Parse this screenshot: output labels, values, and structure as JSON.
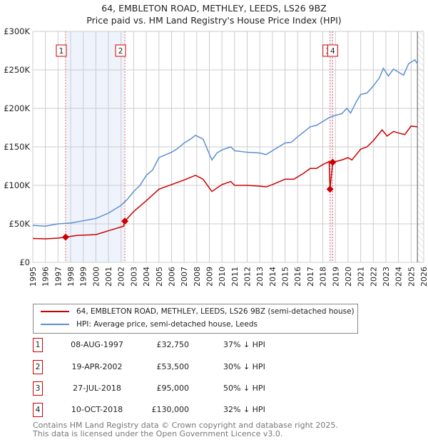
{
  "chart_data": {
    "type": "line",
    "title": "64, EMBLETON ROAD, METHLEY, LEEDS, LS26 9BZ",
    "subtitle": "Price paid vs. HM Land Registry's House Price Index (HPI)",
    "xlim": [
      1995,
      2026
    ],
    "ylim": [
      0,
      300000
    ],
    "y_ticks": [
      {
        "v": 0,
        "label": "£0"
      },
      {
        "v": 50000,
        "label": "£50K"
      },
      {
        "v": 100000,
        "label": "£100K"
      },
      {
        "v": 150000,
        "label": "£150K"
      },
      {
        "v": 200000,
        "label": "£200K"
      },
      {
        "v": 250000,
        "label": "£250K"
      },
      {
        "v": 300000,
        "label": "£300K"
      }
    ],
    "x_ticks": [
      "1995",
      "1996",
      "1997",
      "1998",
      "1999",
      "2000",
      "2001",
      "2002",
      "2003",
      "2004",
      "2005",
      "2006",
      "2007",
      "2008",
      "2009",
      "2010",
      "2011",
      "2012",
      "2013",
      "2014",
      "2015",
      "2016",
      "2017",
      "2018",
      "2019",
      "2020",
      "2021",
      "2022",
      "2023",
      "2024",
      "2025",
      "2026"
    ],
    "grid": true,
    "series": [
      {
        "name": "64, EMBLETON ROAD, METHLEY, LEEDS, LS26 9BZ (semi-detached house)",
        "color": "#cc0000",
        "x": [
          1995,
          1996,
          1997,
          1997.6,
          1998.5,
          2000,
          2001,
          2002.2,
          2002.3,
          2003,
          2004,
          2005,
          2006,
          2007,
          2007.9,
          2008.5,
          2009.2,
          2010,
          2010.7,
          2011,
          2012,
          2013,
          2013.5,
          2014,
          2015,
          2015.7,
          2016.5,
          2017,
          2017.5,
          2018,
          2018.5,
          2018.57,
          2018.78,
          2019.5,
          2020,
          2020.3,
          2021,
          2021.5,
          2022,
          2022.7,
          2023.1,
          2023.6,
          2024,
          2024.5,
          2025,
          2025.5
        ],
        "y": [
          31000,
          30500,
          31500,
          32750,
          35000,
          36000,
          41000,
          47000,
          53500,
          66000,
          80000,
          95000,
          101000,
          107000,
          113000,
          108000,
          92000,
          101000,
          105000,
          100000,
          100000,
          99000,
          98000,
          101000,
          108000,
          108000,
          116000,
          122000,
          122000,
          127000,
          131000,
          95000,
          130000,
          133000,
          136000,
          133000,
          147000,
          150000,
          158000,
          172000,
          164000,
          170000,
          168000,
          166000,
          177000,
          176000
        ]
      },
      {
        "name": "HPI: Average price, semi-detached house, Leeds",
        "color": "#5b8fd4",
        "x": [
          1995,
          1996,
          1997,
          1998,
          1999,
          2000,
          2001,
          2002,
          2002.5,
          2003,
          2003.5,
          2004,
          2004.5,
          2005,
          2006,
          2006.5,
          2007,
          2007.5,
          2007.9,
          2008.5,
          2009.2,
          2009.6,
          2010,
          2010.7,
          2011,
          2012,
          2013,
          2013.5,
          2014,
          2015,
          2015.5,
          2016,
          2017,
          2017.5,
          2018,
          2018.5,
          2019,
          2019.5,
          2019.9,
          2020.2,
          2020.7,
          2021,
          2021.5,
          2022,
          2022.5,
          2022.8,
          2023.2,
          2023.6,
          2024,
          2024.4,
          2024.8,
          2025.3,
          2025.5
        ],
        "y": [
          48000,
          47000,
          50000,
          51000,
          54000,
          57000,
          64000,
          74000,
          82000,
          92000,
          100000,
          113000,
          120000,
          136000,
          143000,
          148000,
          155000,
          160000,
          165000,
          160000,
          133000,
          142000,
          146000,
          150000,
          145000,
          143000,
          142000,
          140000,
          145000,
          155000,
          156000,
          163000,
          176000,
          178000,
          183000,
          188000,
          191000,
          193000,
          200000,
          194000,
          210000,
          218000,
          220000,
          229000,
          240000,
          252000,
          242000,
          251000,
          247000,
          243000,
          258000,
          263000,
          258000
        ]
      }
    ],
    "sales": [
      {
        "n": "1",
        "x": 1997.6,
        "y": 32750,
        "date": "08-AUG-1997",
        "price": "£32,750",
        "pct": "37% ↓ HPI"
      },
      {
        "n": "2",
        "x": 2002.3,
        "y": 53500,
        "date": "19-APR-2002",
        "price": "£53,500",
        "pct": "30% ↓ HPI"
      },
      {
        "n": "3",
        "x": 2018.57,
        "y": 95000,
        "date": "27-JUL-2018",
        "price": "£95,000",
        "pct": "50% ↓ HPI"
      },
      {
        "n": "4",
        "x": 2018.78,
        "y": 130000,
        "date": "10-OCT-2018",
        "price": "£130,000",
        "pct": "32% ↓ HPI"
      }
    ],
    "forecast_from": 2025.5,
    "legend_placement": "below"
  },
  "footer": [
    "Contains HM Land Registry data © Crown copyright and database right 2025.",
    "This data is licensed under the Open Government Licence v3.0."
  ]
}
